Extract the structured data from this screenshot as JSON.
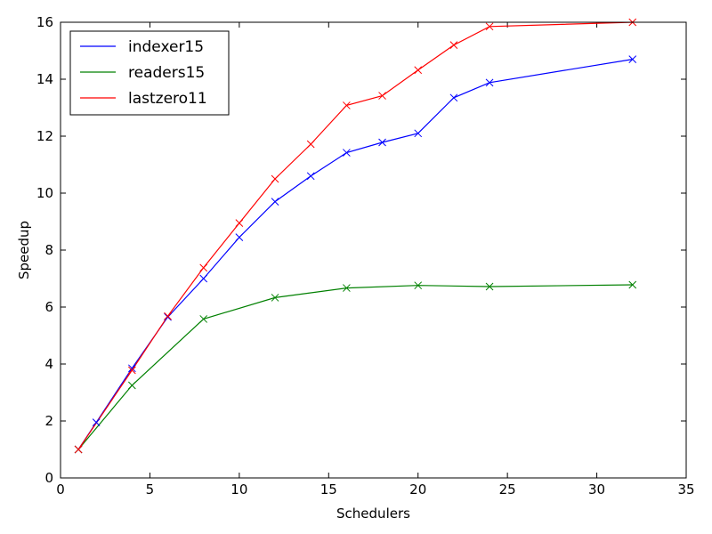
{
  "chart_data": {
    "type": "line",
    "xlabel": "Schedulers",
    "ylabel": "Speedup",
    "xlim": [
      0,
      35
    ],
    "ylim": [
      0,
      16
    ],
    "xticks": [
      0,
      5,
      10,
      15,
      20,
      25,
      30,
      35
    ],
    "yticks": [
      0,
      2,
      4,
      6,
      8,
      10,
      12,
      14,
      16
    ],
    "grid": false,
    "legend_position": "top-left",
    "marker": "x",
    "series": [
      {
        "name": "indexer15",
        "color": "#0000ff",
        "x": [
          1,
          2,
          4,
          6,
          8,
          10,
          12,
          14,
          16,
          18,
          20,
          22,
          24,
          32
        ],
        "y": [
          1.0,
          1.95,
          3.85,
          5.65,
          7.0,
          8.45,
          9.7,
          10.6,
          11.42,
          11.78,
          12.1,
          13.35,
          13.88,
          14.7
        ]
      },
      {
        "name": "readers15",
        "color": "#008000",
        "x": [
          1,
          4,
          8,
          12,
          16,
          20,
          24,
          32
        ],
        "y": [
          1.0,
          3.25,
          5.58,
          6.33,
          6.67,
          6.76,
          6.72,
          6.78
        ]
      },
      {
        "name": "lastzero11",
        "color": "#ff0000",
        "x": [
          1,
          4,
          6,
          8,
          10,
          12,
          14,
          16,
          18,
          20,
          22,
          24,
          32
        ],
        "y": [
          1.0,
          3.78,
          5.68,
          7.38,
          8.95,
          10.5,
          11.72,
          13.08,
          13.42,
          14.32,
          15.2,
          15.85,
          16.0
        ]
      }
    ]
  }
}
